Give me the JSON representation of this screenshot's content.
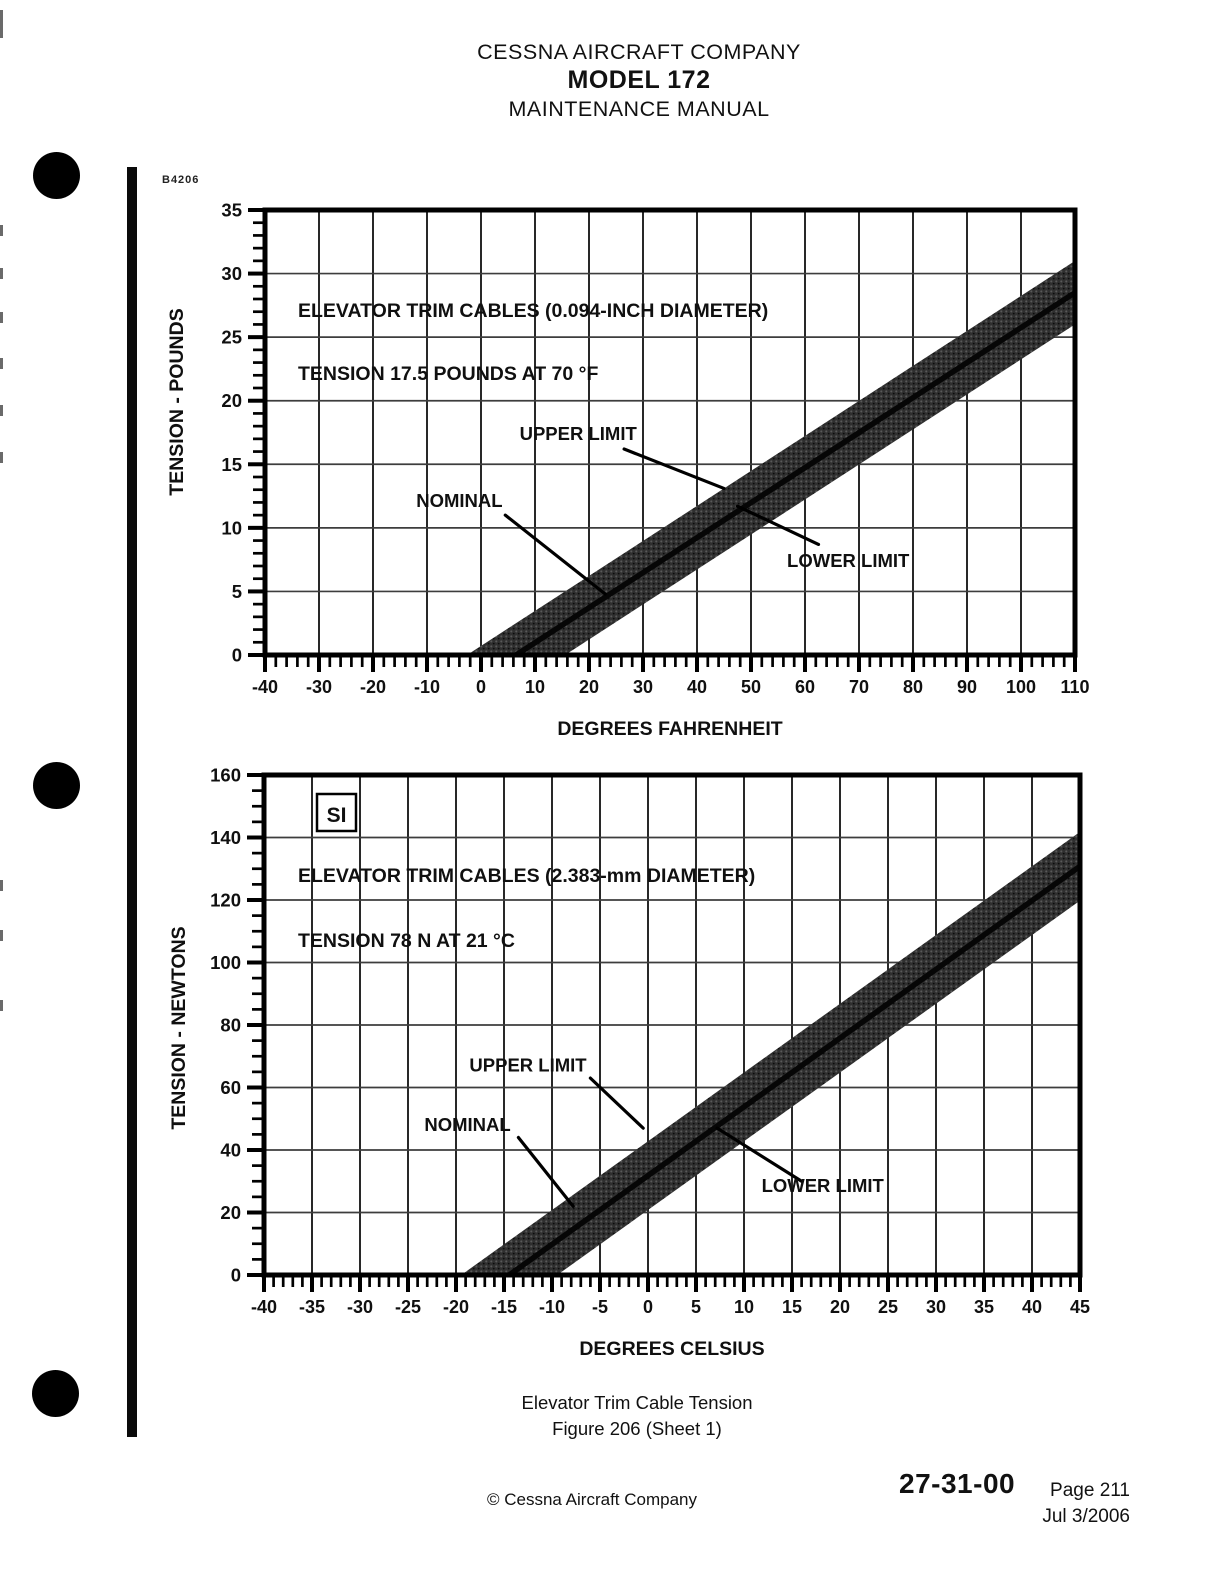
{
  "page": {
    "header": {
      "line1": "CESSNA AIRCRAFT COMPANY",
      "line2": "MODEL 172",
      "line3": "MAINTENANCE MANUAL"
    },
    "figure_code": "B4206",
    "caption": {
      "line1": "Elevator Trim Cable Tension",
      "line2": "Figure 206 (Sheet 1)"
    },
    "footer": {
      "copyright": "© Cessna Aircraft Company",
      "chapter_section": "27-31-00",
      "page": "Page 211",
      "date": "Jul 3/2006"
    }
  },
  "colors": {
    "ink": "#111111",
    "band_fill": "#2f2f2f",
    "paper": "#ffffff"
  },
  "chart_data": [
    {
      "id": "imperial-chart",
      "type": "area",
      "title_lines": [
        "ELEVATOR TRIM CABLES (0.094-INCH DIAMETER)",
        "TENSION 17.5 POUNDS AT 70 °F"
      ],
      "si_badge": "",
      "xlabel": "DEGREES FAHRENHEIT",
      "ylabel": "TENSION - POUNDS",
      "xlim": [
        -40,
        110
      ],
      "xtick_major": 10,
      "xtick_minor": 2,
      "ylim": [
        0,
        35
      ],
      "ytick_major": 5,
      "ytick_minor": 1,
      "grid": true,
      "legend_position": "none",
      "nominal_reference_point": {
        "x": 70,
        "y": 17.5
      },
      "series": [
        {
          "name": "UPPER LIMIT",
          "role": "upper",
          "points": [
            [
              -40,
              -10.3
            ],
            [
              110,
              31.0
            ]
          ]
        },
        {
          "name": "NOMINAL",
          "role": "nominal",
          "points": [
            [
              -40,
              -12.8
            ],
            [
              110,
              28.5
            ]
          ]
        },
        {
          "name": "LOWER LIMIT",
          "role": "lower",
          "points": [
            [
              -40,
              -15.3
            ],
            [
              110,
              26.0
            ]
          ]
        }
      ],
      "annotations": [
        {
          "text": "UPPER LIMIT",
          "at": [
            18,
            17.4
          ],
          "leader": [
            [
              26.5,
              16.2
            ],
            [
              45,
              13.1
            ]
          ]
        },
        {
          "text": "NOMINAL",
          "at": [
            -4,
            12.1
          ],
          "leader": [
            [
              4.5,
              11.0
            ],
            [
              23,
              4.8
            ]
          ]
        },
        {
          "text": "LOWER LIMIT",
          "at": [
            68,
            7.4
          ],
          "leader": [
            [
              62.5,
              8.7
            ],
            [
              47.5,
              11.7
            ]
          ]
        }
      ]
    },
    {
      "id": "si-chart",
      "type": "area",
      "title_lines": [
        "ELEVATOR TRIM CABLES (2.383-mm DIAMETER)",
        "TENSION 78 N AT 21 °C"
      ],
      "si_badge": "SI",
      "xlabel": "DEGREES CELSIUS",
      "ylabel": "TENSION - NEWTONS",
      "xlim": [
        -40,
        45
      ],
      "xtick_major": 5,
      "xtick_minor": 1,
      "ylim": [
        0,
        160
      ],
      "ytick_major": 20,
      "ytick_minor": 5,
      "grid": true,
      "legend_position": "none",
      "nominal_reference_point": {
        "x": 21,
        "y": 78
      },
      "series": [
        {
          "name": "UPPER LIMIT",
          "role": "upper",
          "points": [
            [
              -40,
              -45.2
            ],
            [
              45,
              141.8
            ]
          ]
        },
        {
          "name": "NOMINAL",
          "role": "nominal",
          "points": [
            [
              -40,
              -56.2
            ],
            [
              45,
              130.8
            ]
          ]
        },
        {
          "name": "LOWER LIMIT",
          "role": "lower",
          "points": [
            [
              -40,
              -67.2
            ],
            [
              45,
              119.8
            ]
          ]
        }
      ],
      "annotations": [
        {
          "text": "UPPER LIMIT",
          "at": [
            -12.5,
            67
          ],
          "leader": [
            [
              -6,
              63
            ],
            [
              -0.5,
              47
            ]
          ]
        },
        {
          "text": "NOMINAL",
          "at": [
            -18.8,
            48
          ],
          "leader": [
            [
              -13.5,
              44
            ],
            [
              -7.8,
              22
            ]
          ]
        },
        {
          "text": "LOWER LIMIT",
          "at": [
            18.2,
            28.5
          ],
          "leader": [
            [
              16,
              30
            ],
            [
              7.2,
              47
            ]
          ]
        }
      ]
    }
  ]
}
